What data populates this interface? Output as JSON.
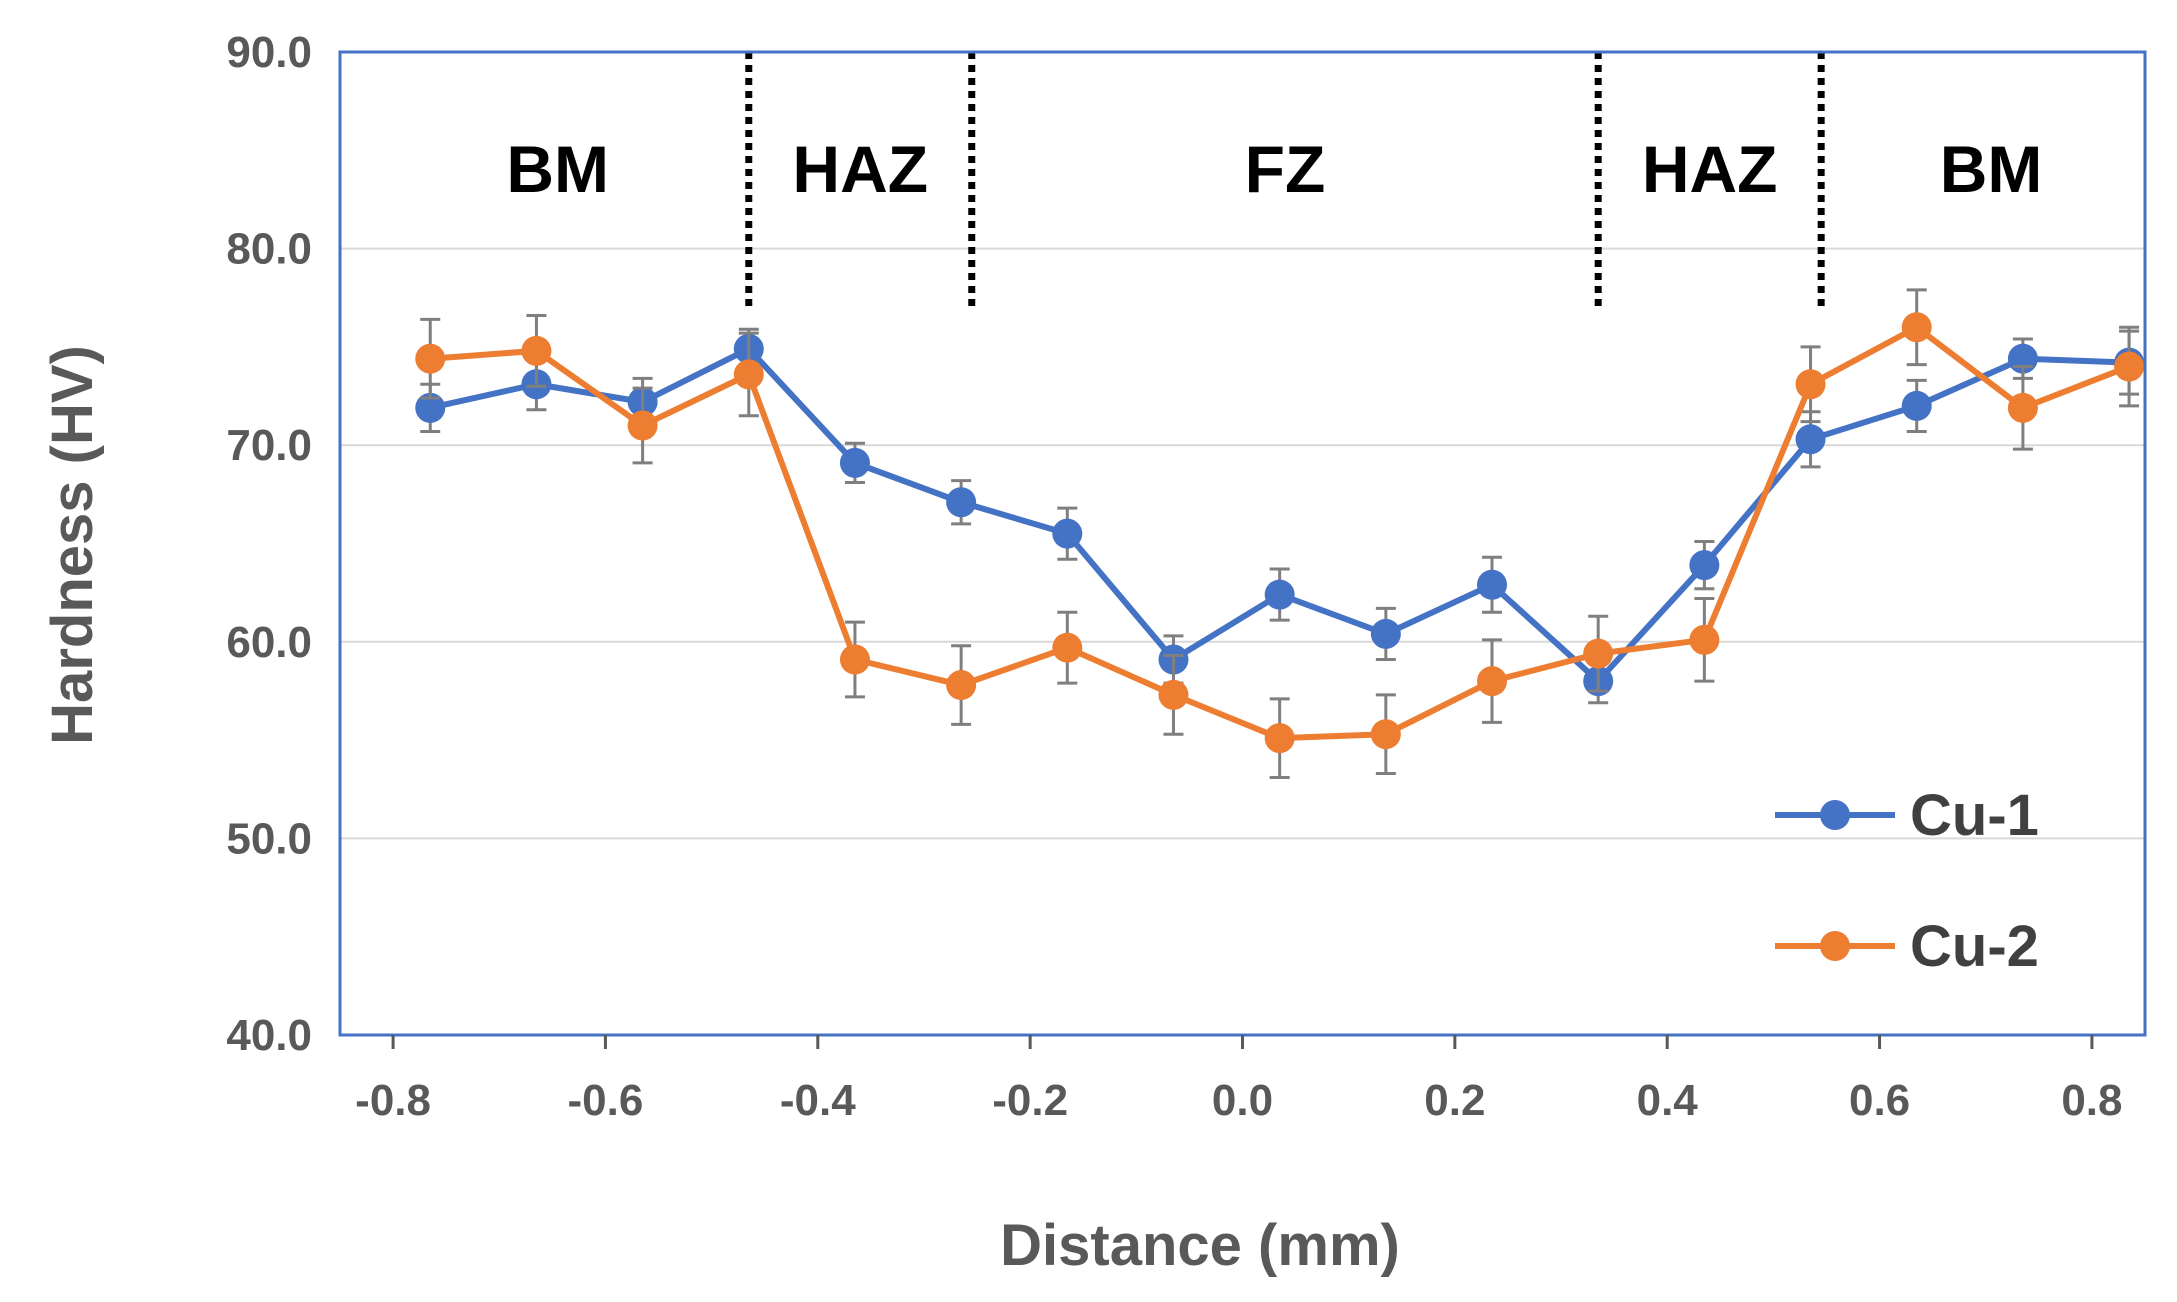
{
  "chart_data": {
    "type": "line",
    "title": "",
    "xlabel": "Distance (mm)",
    "ylabel": "Hardness (HV)",
    "xlim": [
      -0.85,
      0.85
    ],
    "ylim": [
      40.0,
      90.0
    ],
    "x_ticks": [
      -0.8,
      -0.6,
      -0.4,
      -0.2,
      0.0,
      0.2,
      0.4,
      0.6,
      0.8
    ],
    "x_tick_labels": [
      "-0.8",
      "-0.6",
      "-0.4",
      "-0.2",
      "0.0",
      "0.2",
      "0.4",
      "0.6",
      "0.8"
    ],
    "y_ticks": [
      40.0,
      50.0,
      60.0,
      70.0,
      80.0,
      90.0
    ],
    "y_tick_labels": [
      "40.0",
      "50.0",
      "60.0",
      "70.0",
      "80.0",
      "90.0"
    ],
    "grid": "horizontal",
    "legend_position": "bottom-right",
    "x": [
      -0.765,
      -0.665,
      -0.565,
      -0.465,
      -0.365,
      -0.265,
      -0.165,
      -0.065,
      0.035,
      0.135,
      0.235,
      0.335,
      0.435,
      0.535,
      0.635,
      0.735,
      0.835
    ],
    "series": [
      {
        "name": "Cu-1",
        "color": "#4472c4",
        "values": [
          71.9,
          73.1,
          72.2,
          74.9,
          69.1,
          67.1,
          65.5,
          59.1,
          62.4,
          60.4,
          62.9,
          58.0,
          63.9,
          70.3,
          72.0,
          74.4,
          74.2
        ],
        "errors": [
          1.2,
          1.3,
          1.2,
          1.0,
          1.0,
          1.1,
          1.3,
          1.2,
          1.3,
          1.3,
          1.4,
          1.1,
          1.2,
          1.4,
          1.3,
          1.0,
          1.6
        ]
      },
      {
        "name": "Cu-2",
        "color": "#ed7d31",
        "values": [
          74.4,
          74.8,
          71.0,
          73.6,
          59.1,
          57.8,
          59.7,
          57.3,
          55.1,
          55.3,
          58.0,
          59.4,
          60.1,
          73.1,
          76.0,
          71.9,
          74.0
        ],
        "errors": [
          2.0,
          1.8,
          1.9,
          2.1,
          1.9,
          2.0,
          1.8,
          2.0,
          2.0,
          2.0,
          2.1,
          1.9,
          2.1,
          1.9,
          1.9,
          2.1,
          2.0
        ]
      }
    ],
    "region_boundaries": [
      -0.465,
      -0.255,
      0.335,
      0.545
    ],
    "regions": [
      {
        "label": "BM",
        "x_center": -0.645
      },
      {
        "label": "HAZ",
        "x_center": -0.36
      },
      {
        "label": "FZ",
        "x_center": 0.04
      },
      {
        "label": "HAZ",
        "x_center": 0.44
      },
      {
        "label": "BM",
        "x_center": 0.705
      }
    ]
  },
  "colors": {
    "plot_border": "#4472c4",
    "grid": "#d9d9d9",
    "axis_text": "#595959",
    "error_bar": "#7f7f7f"
  }
}
